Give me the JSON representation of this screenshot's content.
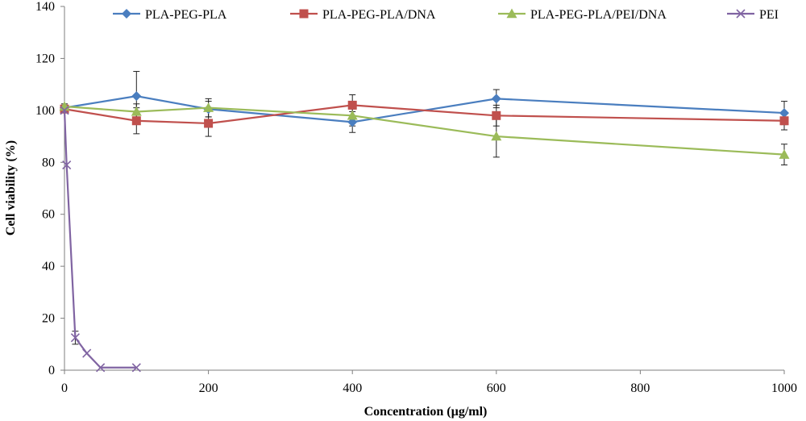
{
  "chart_data": {
    "type": "line",
    "xlabel": "Concentration (µg/ml)",
    "ylabel": "Cell viability (%)",
    "xlim": [
      0,
      1000
    ],
    "ylim": [
      0,
      140
    ],
    "xticks": [
      0,
      200,
      400,
      600,
      800,
      1000
    ],
    "yticks": [
      0,
      20,
      40,
      60,
      80,
      100,
      120,
      140
    ],
    "grid": false,
    "legend_position": "top",
    "series": [
      {
        "name": "PLA-PEG-PLA",
        "color": "#4a7ebf",
        "marker": "diamond",
        "x": [
          0,
          100,
          200,
          400,
          600,
          1000
        ],
        "y": [
          101,
          105.5,
          100.5,
          95.5,
          104.5,
          99
        ],
        "err": [
          1,
          9.5,
          3,
          4,
          3.5,
          4.5
        ]
      },
      {
        "name": "PLA-PEG-PLA/DNA",
        "color": "#c0504d",
        "marker": "square",
        "x": [
          0,
          100,
          200,
          400,
          600,
          1000
        ],
        "y": [
          100.5,
          96,
          95,
          102,
          98,
          96
        ],
        "err": [
          1,
          5,
          5,
          4,
          4,
          3.5
        ]
      },
      {
        "name": "PLA-PEG-PLA/PEI/DNA",
        "color": "#9bbb59",
        "marker": "triangle",
        "x": [
          0,
          100,
          200,
          400,
          600,
          1000
        ],
        "y": [
          101.5,
          99.5,
          101,
          98,
          90,
          83
        ],
        "err": [
          1,
          3,
          3.5,
          4,
          8,
          4
        ]
      },
      {
        "name": "PEI",
        "color": "#8064a2",
        "marker": "x",
        "x": [
          0,
          3,
          15,
          31,
          50,
          100
        ],
        "y": [
          100,
          79,
          12.5,
          6.5,
          1,
          1
        ],
        "err": [
          0,
          0,
          2.5,
          0,
          0,
          0
        ]
      }
    ]
  }
}
